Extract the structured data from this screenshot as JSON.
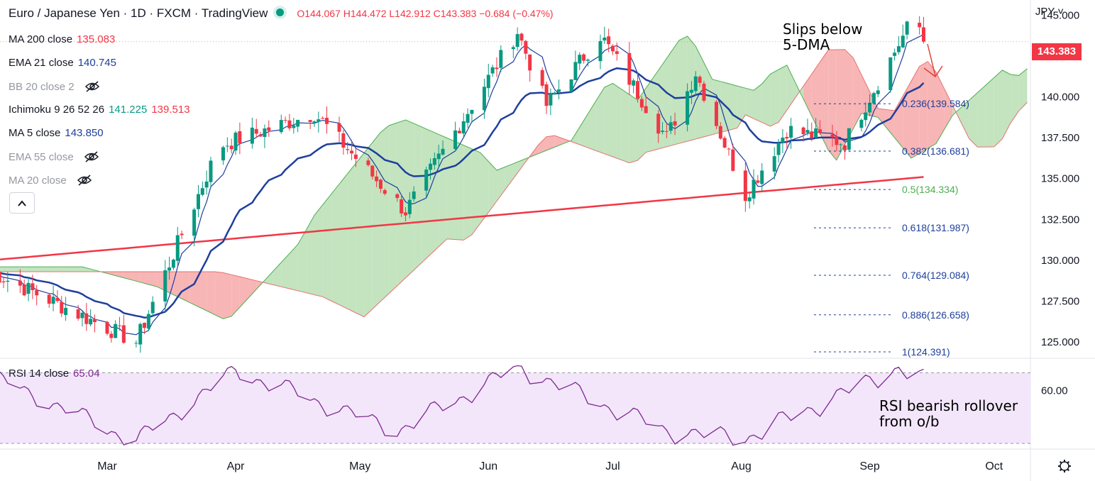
{
  "header": {
    "symbol": "Euro / Japanese Yen · 1D · FXCM · TradingView",
    "ohlc": "O144.067  H144.472  L142.912  C143.383  −0.684 (−0.47%)"
  },
  "indicators": [
    {
      "name": "MA 200 close",
      "value": "135.083",
      "color": "#f23645",
      "hidden": false
    },
    {
      "name": "EMA 21 close",
      "value": "140.745",
      "color": "#1e3f9c",
      "hidden": false
    },
    {
      "name": "BB 20 close 2",
      "value": "",
      "color": "#9598a1",
      "hidden": true
    },
    {
      "name": "Ichimoku 9 26 52 26",
      "value": "141.225",
      "value2": "139.513",
      "color": "#089981",
      "color2": "#f23645",
      "hidden": false
    },
    {
      "name": "MA 5 close",
      "value": "143.850",
      "color": "#1e3f9c",
      "hidden": false
    },
    {
      "name": "EMA 55 close",
      "value": "",
      "color": "#9598a1",
      "hidden": true
    },
    {
      "name": "MA 20 close",
      "value": "",
      "color": "#9598a1",
      "hidden": true
    }
  ],
  "currency": "JPY",
  "last_price": "143.383",
  "annotations": {
    "top": "Slips below\n5-DMA",
    "rsi": "RSI bearish rollover\nfrom o/b"
  },
  "rsi": {
    "label": "RSI 14 close",
    "value": "65.04",
    "level_label": "60.00"
  },
  "fib_levels": [
    {
      "label": "0.236(139.584)",
      "price": 139.584
    },
    {
      "label": "0.382(136.681)",
      "price": 136.681
    },
    {
      "label": "0.5(134.334)",
      "price": 134.334
    },
    {
      "label": "0.618(131.987)",
      "price": 131.987
    },
    {
      "label": "0.764(129.084)",
      "price": 129.084
    },
    {
      "label": "0.886(126.658)",
      "price": 126.658
    },
    {
      "label": "1(124.391)",
      "price": 124.391
    }
  ],
  "colors": {
    "up": "#089981",
    "down": "#f23645",
    "ma": "#1e3f9c",
    "ma200": "#f23645",
    "cloud_bull": "#b9dfb4",
    "cloud_bear": "#f7a8a8",
    "rsi_line": "#7e2a8f",
    "rsi_band": "#f3e6fb",
    "fib": "#1e3f9c"
  },
  "chart_data": {
    "type": "candlestick",
    "title": "Euro / Japanese Yen · 1D · FXCM",
    "x_axis": [
      "Mar",
      "Apr",
      "May",
      "Jun",
      "Jul",
      "Aug",
      "Sep",
      "Oct"
    ],
    "y_axis_ticks": [
      "145.000",
      "142.500",
      "140.000",
      "137.500",
      "135.000",
      "132.500",
      "130.000",
      "127.500",
      "125.000"
    ],
    "ylim": [
      124.0,
      145.5
    ],
    "price_anchors": [
      {
        "date": "Feb (start)",
        "close": 129.3
      },
      {
        "date": "Mar 8",
        "close": 125.0
      },
      {
        "date": "Mar 28",
        "close": 137.0
      },
      {
        "date": "Apr 20",
        "close": 139.0
      },
      {
        "date": "May 12",
        "close": 133.0
      },
      {
        "date": "Jun 8",
        "close": 144.0
      },
      {
        "date": "Jun 15",
        "close": 139.5
      },
      {
        "date": "Jun 28",
        "close": 143.8
      },
      {
        "date": "Jul 14",
        "close": 137.5
      },
      {
        "date": "Jul 21",
        "close": 141.5
      },
      {
        "date": "Aug 2",
        "close": 134.0
      },
      {
        "date": "Aug 12",
        "close": 138.0
      },
      {
        "date": "Aug 26",
        "close": 137.2
      },
      {
        "date": "Sep 12",
        "close": 145.1
      },
      {
        "date": "Sep 14",
        "close": 143.383
      }
    ],
    "rsi_range": [
      30,
      75
    ],
    "rsi_anchors": [
      {
        "date": "Feb (start)",
        "value": 67
      },
      {
        "date": "Mar 8",
        "value": 30
      },
      {
        "date": "Apr 1",
        "value": 70
      },
      {
        "date": "May 10",
        "value": 36
      },
      {
        "date": "Jun 8",
        "value": 72
      },
      {
        "date": "Jul 14",
        "value": 36
      },
      {
        "date": "Aug 2",
        "value": 32
      },
      {
        "date": "Sep 8",
        "value": 72
      },
      {
        "date": "Sep 14",
        "value": 65.04
      }
    ]
  }
}
